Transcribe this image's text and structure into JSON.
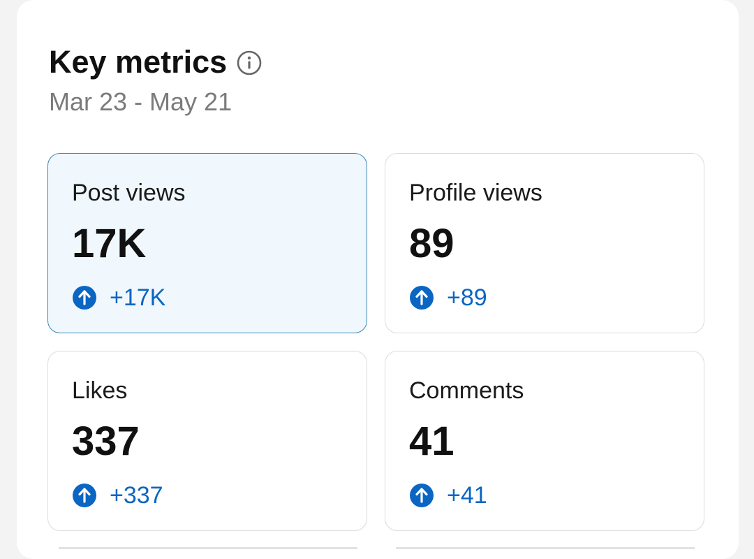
{
  "header": {
    "title": "Key metrics",
    "info_icon": "info-circle-icon",
    "date_range": "Mar 23 - May 21"
  },
  "metrics": [
    {
      "label": "Post views",
      "value": "17K",
      "change": "+17K",
      "trend_icon": "arrow-up-circle-icon",
      "selected": true
    },
    {
      "label": "Profile views",
      "value": "89",
      "change": "+89",
      "trend_icon": "arrow-up-circle-icon",
      "selected": false
    },
    {
      "label": "Likes",
      "value": "337",
      "change": "+337",
      "trend_icon": "arrow-up-circle-icon",
      "selected": false
    },
    {
      "label": "Comments",
      "value": "41",
      "change": "+41",
      "trend_icon": "arrow-up-circle-icon",
      "selected": false
    }
  ],
  "colors": {
    "accent": "#0a66c2",
    "selected_bg": "#f1f8fd",
    "selected_border": "#3a86b8",
    "muted_text": "#7b7b7b"
  }
}
